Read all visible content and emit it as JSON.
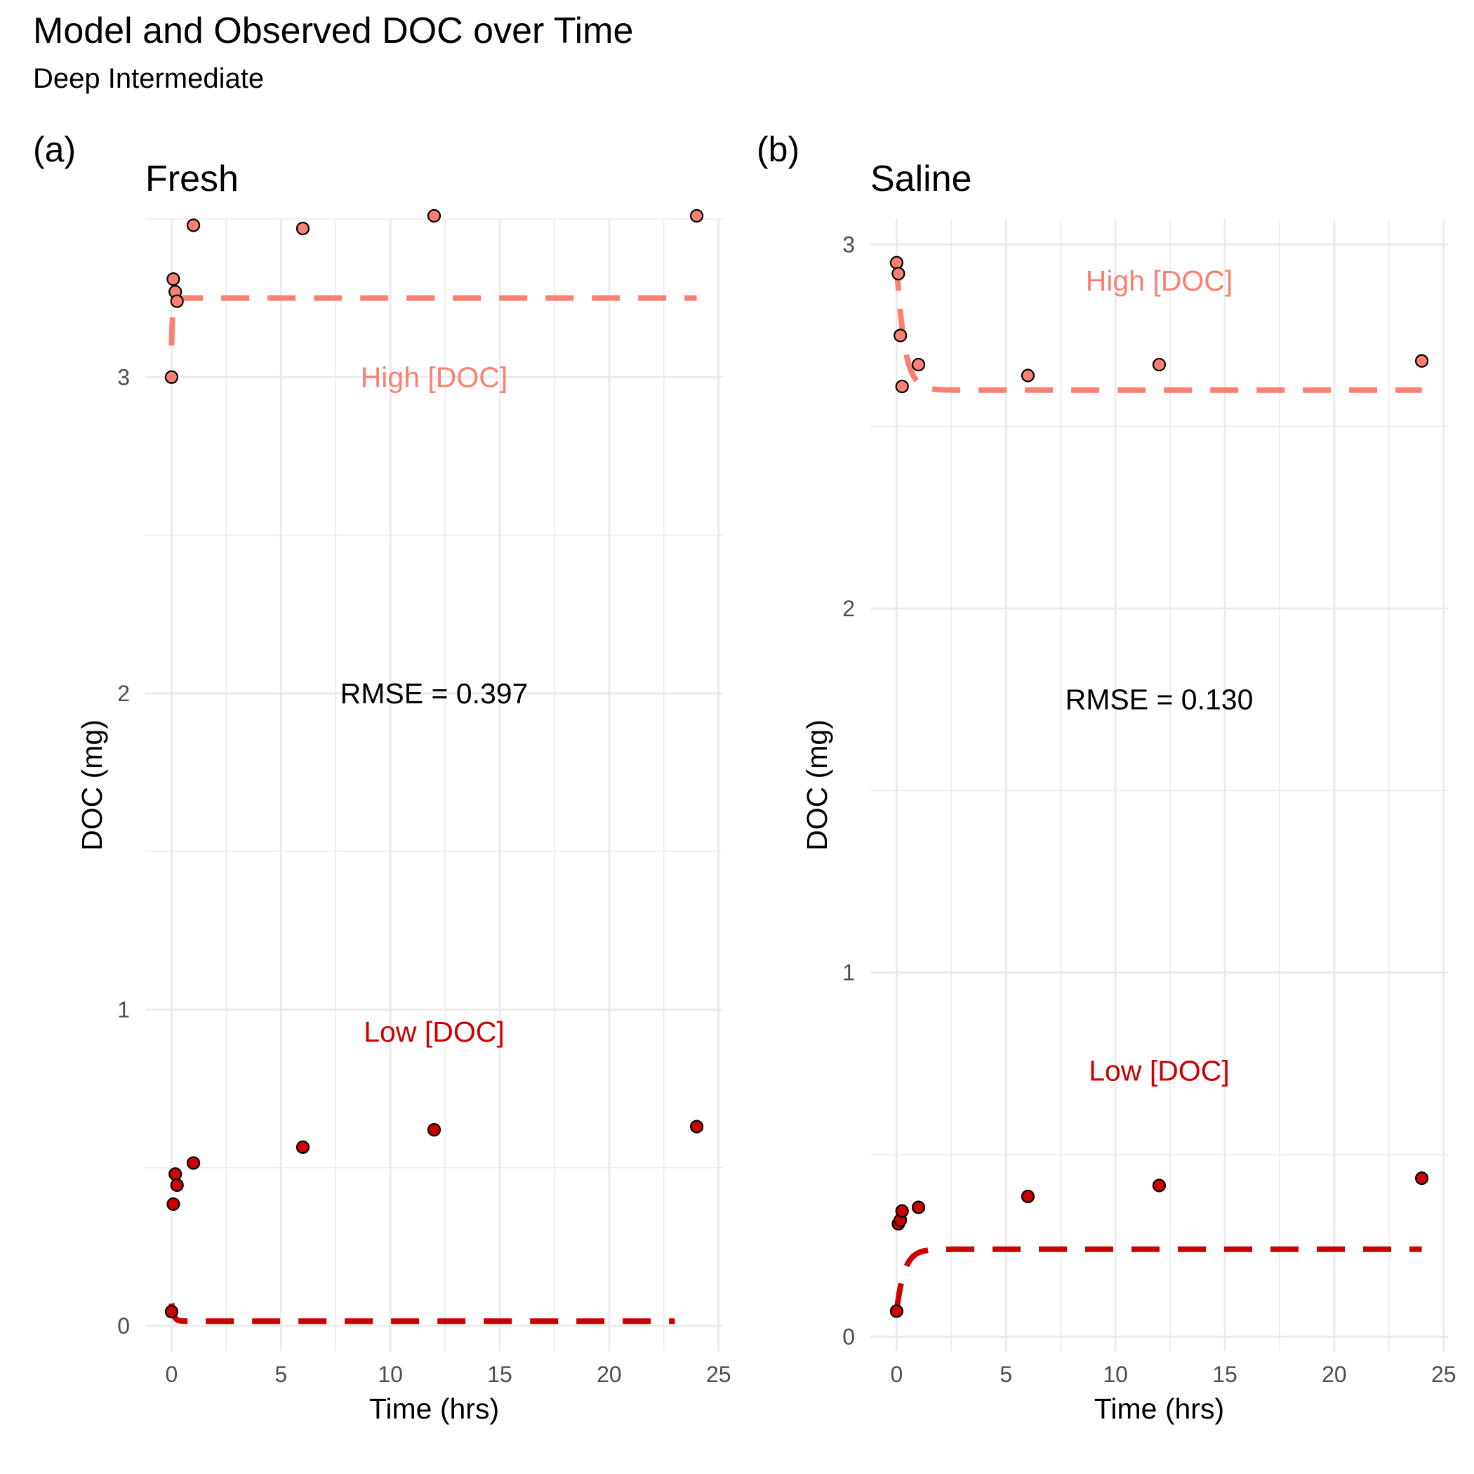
{
  "title": "Model and Observed DOC over Time",
  "subtitle": "Deep Intermediate",
  "colors": {
    "high": "#fa8072",
    "low": "#cc0000",
    "grid": "#ebebeb",
    "tick_text": "#4d4d4d"
  },
  "chart_data": [
    {
      "tag": "(a)",
      "title": "Fresh",
      "type": "scatter",
      "xlabel": "Time (hrs)",
      "ylabel": "DOC (mg)",
      "xlim": [
        -1.2,
        25.2
      ],
      "ylim": [
        -0.08,
        3.5
      ],
      "xticks": [
        0,
        5,
        10,
        15,
        20,
        25
      ],
      "yticks": [
        0,
        1,
        2,
        3
      ],
      "grid": true,
      "annotations": [
        {
          "text": "High [DOC]",
          "x": 12,
          "y": 3.0,
          "color": "high"
        },
        {
          "text": "RMSE = 0.397",
          "x": 12,
          "y": 2.0,
          "color": "black"
        },
        {
          "text": "Low [DOC]",
          "x": 12,
          "y": 0.93,
          "color": "low"
        }
      ],
      "series": [
        {
          "name": "High [DOC]",
          "color": "high",
          "observed_x": [
            0,
            0.08,
            0.17,
            0.25,
            1,
            6,
            12,
            24
          ],
          "observed_y": [
            3.0,
            3.31,
            3.27,
            3.24,
            3.48,
            3.47,
            3.51,
            3.51
          ],
          "model": {
            "start": 3.1,
            "end": 3.25,
            "tau": 0.05,
            "t_end": 24
          }
        },
        {
          "name": "Low [DOC]",
          "color": "low",
          "observed_x": [
            0,
            0.08,
            0.17,
            0.25,
            1,
            6,
            12,
            24
          ],
          "observed_y": [
            0.045,
            0.385,
            0.48,
            0.445,
            0.515,
            0.565,
            0.62,
            0.63
          ],
          "model": {
            "start": 0.07,
            "end": 0.015,
            "tau": 0.1,
            "t_end": 23
          }
        }
      ]
    },
    {
      "tag": "(b)",
      "title": "Saline",
      "type": "scatter",
      "xlabel": "Time (hrs)",
      "ylabel": "DOC (mg)",
      "xlim": [
        -1.2,
        25.2
      ],
      "ylim": [
        -0.04,
        3.07
      ],
      "xticks": [
        0,
        5,
        10,
        15,
        20,
        25
      ],
      "yticks": [
        0,
        1,
        2,
        3
      ],
      "grid": true,
      "annotations": [
        {
          "text": "High [DOC]",
          "x": 12,
          "y": 2.9,
          "color": "high"
        },
        {
          "text": "RMSE = 0.130",
          "x": 12,
          "y": 1.75,
          "color": "black"
        },
        {
          "text": "Low [DOC]",
          "x": 12,
          "y": 0.73,
          "color": "low"
        }
      ],
      "series": [
        {
          "name": "High [DOC]",
          "color": "high",
          "observed_x": [
            0,
            0.08,
            0.17,
            0.25,
            1,
            6,
            12,
            24
          ],
          "observed_y": [
            2.95,
            2.92,
            2.75,
            2.61,
            2.67,
            2.64,
            2.67,
            2.68
          ],
          "model": {
            "start": 2.95,
            "end": 2.6,
            "tau": 0.35,
            "t_end": 24
          }
        },
        {
          "name": "Low [DOC]",
          "color": "low",
          "observed_x": [
            0,
            0.08,
            0.17,
            0.25,
            1,
            6,
            12,
            24
          ],
          "observed_y": [
            0.07,
            0.31,
            0.32,
            0.345,
            0.355,
            0.385,
            0.415,
            0.435
          ],
          "model": {
            "start": 0.07,
            "end": 0.24,
            "tau": 0.35,
            "t_end": 24
          }
        }
      ]
    }
  ]
}
